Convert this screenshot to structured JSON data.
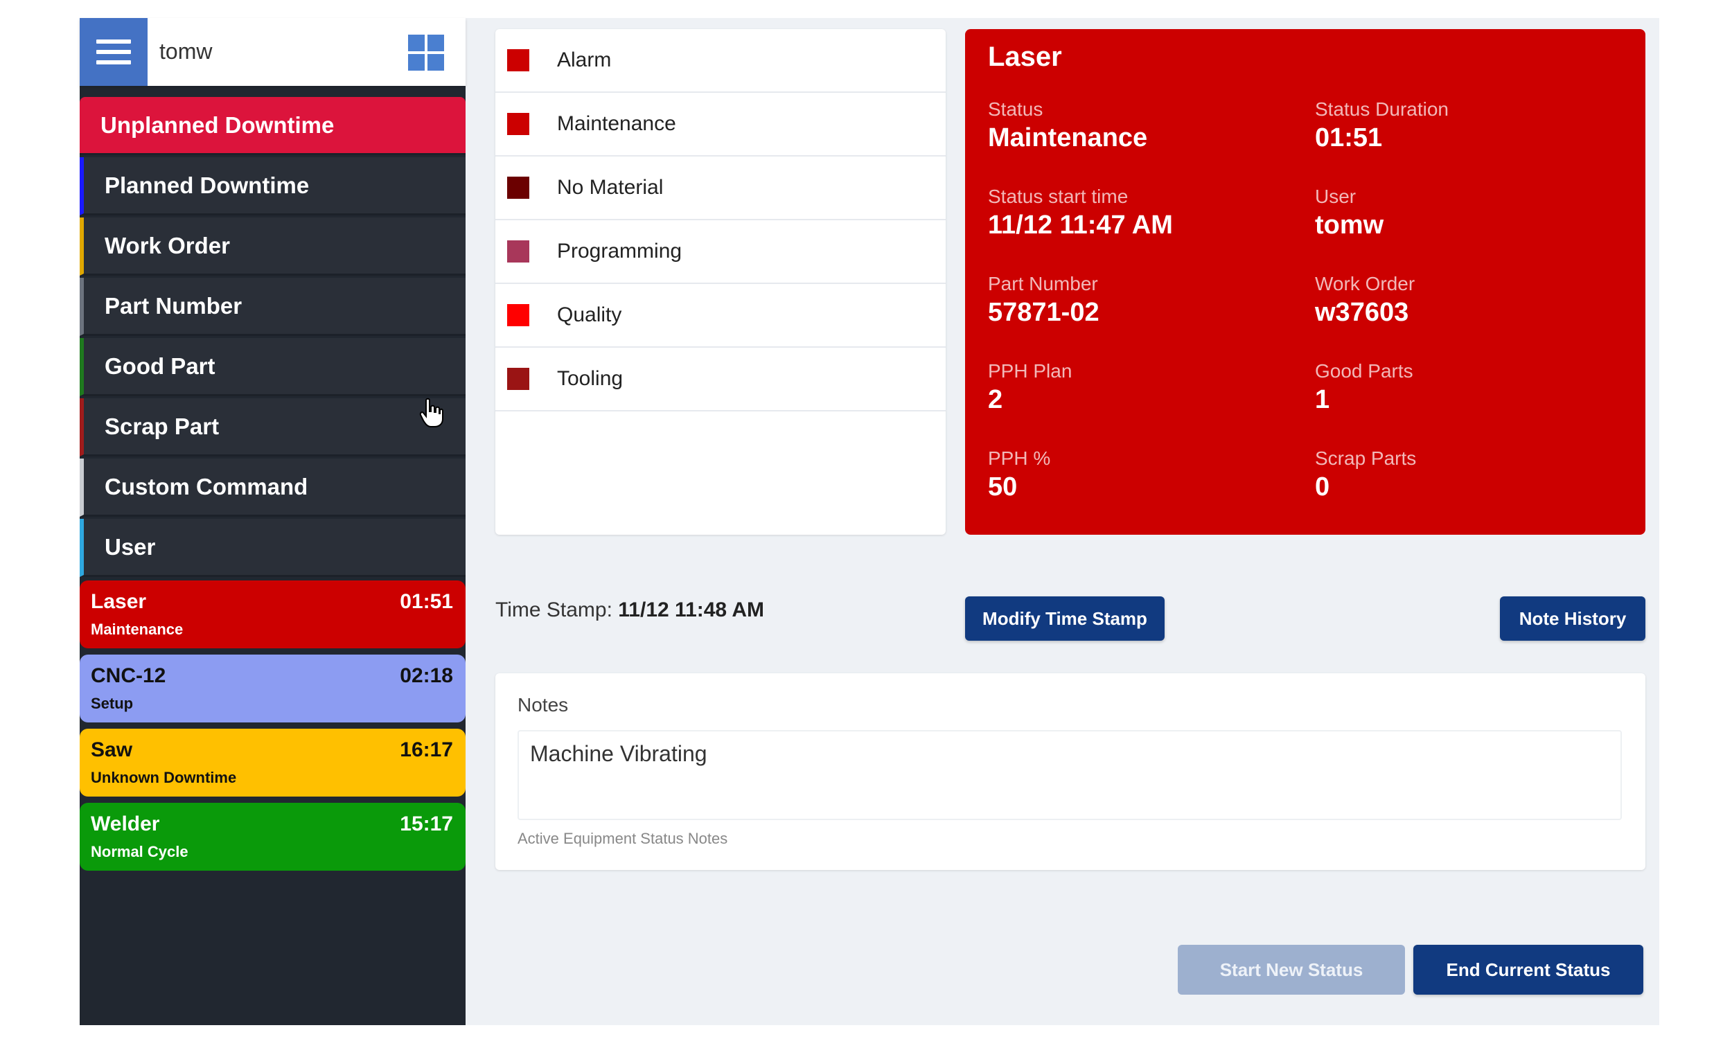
{
  "header": {
    "username": "tomw",
    "menu_icon": "hamburger-icon",
    "apps_icon": "grid-icon"
  },
  "nav": [
    {
      "label": "Unplanned Downtime",
      "accent": "#dc143c",
      "active": true
    },
    {
      "label": "Planned Downtime",
      "accent": "#1a1aff"
    },
    {
      "label": "Work Order",
      "accent": "#e0a800"
    },
    {
      "label": "Part Number",
      "accent": "#6c737e"
    },
    {
      "label": "Good Part",
      "accent": "#1f7a1f"
    },
    {
      "label": "Scrap Part",
      "accent": "#a01c1c"
    },
    {
      "label": "Custom Command",
      "accent": "#c9ccd1"
    },
    {
      "label": "User",
      "accent": "#2fa8e0"
    }
  ],
  "machines": [
    {
      "name": "Laser",
      "time": "01:51",
      "status": "Maintenance",
      "bg": "#cc0000",
      "fg": "#ffffff"
    },
    {
      "name": "CNC-12",
      "time": "02:18",
      "status": "Setup",
      "bg": "#8c9cf2",
      "fg": "#111111"
    },
    {
      "name": "Saw",
      "time": "16:17",
      "status": "Unknown Downtime",
      "bg": "#ffc000",
      "fg": "#111111"
    },
    {
      "name": "Welder",
      "time": "15:17",
      "status": "Normal Cycle",
      "bg": "#0a9a0a",
      "fg": "#ffffff"
    }
  ],
  "reasons": [
    {
      "label": "Alarm",
      "color": "#cc0000"
    },
    {
      "label": "Maintenance",
      "color": "#cc0000"
    },
    {
      "label": "No Material",
      "color": "#6b0000"
    },
    {
      "label": "Programming",
      "color": "#a8375a"
    },
    {
      "label": "Quality",
      "color": "#ff0000"
    },
    {
      "label": "Tooling",
      "color": "#9a1414"
    }
  ],
  "card": {
    "title": "Laser",
    "fields": [
      {
        "label": "Status",
        "value": "Maintenance"
      },
      {
        "label": "Status Duration",
        "value": "01:51"
      },
      {
        "label": "Status start time",
        "value": "11/12 11:47 AM"
      },
      {
        "label": "User",
        "value": "tomw"
      },
      {
        "label": "Part Number",
        "value": "57871-02"
      },
      {
        "label": "Work Order",
        "value": "w37603"
      },
      {
        "label": "PPH Plan",
        "value": "2"
      },
      {
        "label": "Good Parts",
        "value": "1"
      },
      {
        "label": "PPH %",
        "value": "50"
      },
      {
        "label": "Scrap Parts",
        "value": "0"
      }
    ]
  },
  "timestamp": {
    "label": "Time Stamp:",
    "value": "11/12 11:48 AM"
  },
  "buttons": {
    "modify": "Modify Time Stamp",
    "history": "Note History",
    "start": "Start New Status",
    "end": "End Current Status"
  },
  "notes": {
    "label": "Notes",
    "value": "Machine Vibrating",
    "help": "Active Equipment Status Notes"
  }
}
